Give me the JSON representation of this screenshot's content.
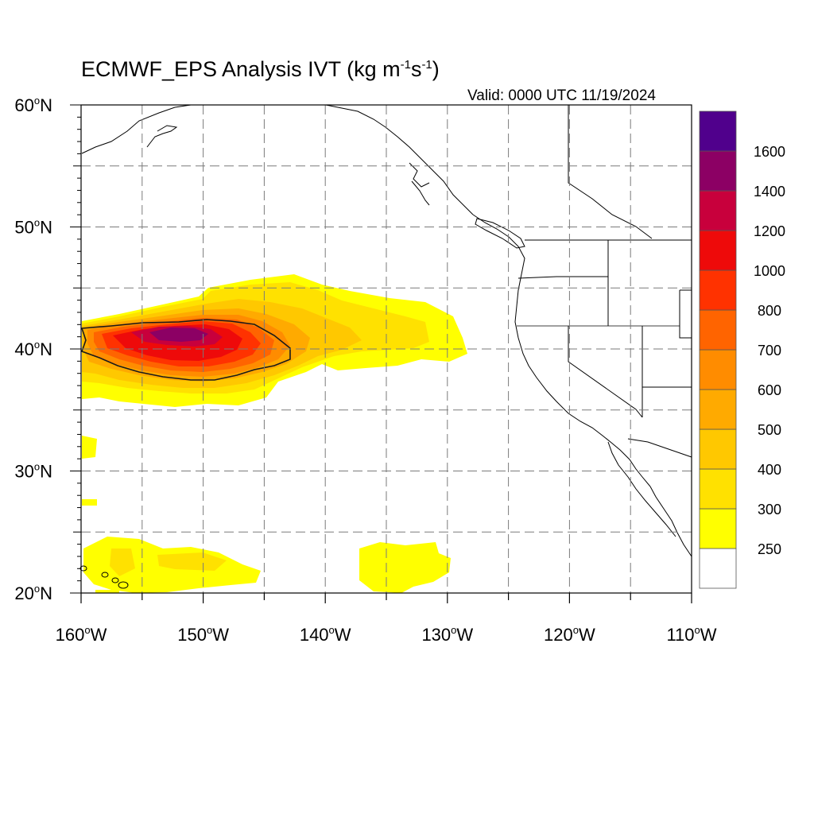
{
  "header": {
    "title_main": "ECMWF_EPS Analysis IVT (kg m",
    "title_exp1": "-1",
    "title_mid": "s",
    "title_exp2": "-1",
    "title_end": ")",
    "valid": "Valid: 0000 UTC 11/19/2024"
  },
  "map": {
    "lon_range": [
      -160,
      -110
    ],
    "lat_range": [
      20,
      60
    ],
    "lon_labels": [
      "160",
      "150",
      "140",
      "130",
      "120",
      "110"
    ],
    "lon_suffix": "W",
    "lat_labels": [
      "20",
      "30",
      "40",
      "50",
      "60"
    ],
    "lat_suffix": "N",
    "degree_symbol": "o",
    "gridlines": "dashed, every 5 degrees",
    "contour_level": 1000,
    "features": [
      "Hawaiian Islands",
      "Alaska coast",
      "Pacific Northwest coast",
      "California",
      "Baja California",
      "US state borders"
    ]
  },
  "colorbar": {
    "labels": [
      "250",
      "300",
      "400",
      "500",
      "600",
      "700",
      "800",
      "1000",
      "1200",
      "1400",
      "1600"
    ],
    "colors": [
      "#ffffff",
      "#ffff00",
      "#ffe100",
      "#ffc800",
      "#ffaa00",
      "#ff8c00",
      "#ff6400",
      "#ff3200",
      "#ee0a0a",
      "#c8003c",
      "#8c0064",
      "#50008c"
    ]
  }
}
